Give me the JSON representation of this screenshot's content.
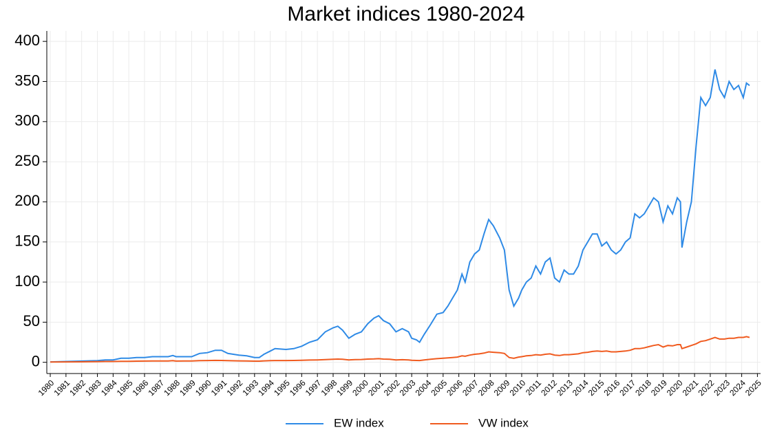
{
  "chart_data": {
    "type": "line",
    "title": "Market indices 1980-2024",
    "x": [
      1980,
      1981,
      1982,
      1983,
      1983.5,
      1984,
      1984.5,
      1985,
      1985.5,
      1986,
      1986.5,
      1987,
      1987.5,
      1987.8,
      1988,
      1988.5,
      1989,
      1989.5,
      1990,
      1990.5,
      1990.9,
      1991.3,
      1992,
      1992.5,
      1993,
      1993.3,
      1993.6,
      1994,
      1994.3,
      1995,
      1995.5,
      1996,
      1996.5,
      1997,
      1997.5,
      1998,
      1998.3,
      1998.6,
      1999,
      1999.4,
      1999.8,
      2000.2,
      2000.6,
      2000.9,
      2001.2,
      2001.6,
      2002,
      2002.4,
      2002.8,
      2003,
      2003.3,
      2003.5,
      2003.8,
      2004.2,
      2004.6,
      2005,
      2005.3,
      2005.6,
      2005.9,
      2006.2,
      2006.4,
      2006.7,
      2007,
      2007.3,
      2007.6,
      2007.9,
      2008.2,
      2008.6,
      2008.9,
      2009.2,
      2009.5,
      2009.8,
      2010,
      2010.3,
      2010.6,
      2010.9,
      2011.2,
      2011.5,
      2011.8,
      2012.1,
      2012.4,
      2012.7,
      2013,
      2013.3,
      2013.6,
      2013.9,
      2014.2,
      2014.5,
      2014.8,
      2015.1,
      2015.4,
      2015.7,
      2016,
      2016.3,
      2016.6,
      2016.9,
      2017.2,
      2017.5,
      2017.8,
      2018.1,
      2018.4,
      2018.7,
      2019,
      2019.3,
      2019.6,
      2019.9,
      2020.1,
      2020.2,
      2020.5,
      2020.8,
      2021.1,
      2021.4,
      2021.7,
      2022,
      2022.3,
      2022.6,
      2022.9,
      2023.2,
      2023.5,
      2023.8,
      2024.1,
      2024.3,
      2024.5
    ],
    "series": [
      {
        "name": "EW index",
        "color": "#2e8ae6",
        "values": [
          0.5,
          1,
          1.5,
          2,
          3,
          3,
          5,
          5,
          6,
          6,
          7,
          7,
          7,
          8.5,
          7,
          7,
          7,
          11,
          12,
          15,
          15,
          11,
          9,
          8,
          6,
          6,
          10,
          14,
          17,
          16,
          17,
          20,
          25,
          28,
          38,
          43,
          45,
          40,
          30,
          35,
          38,
          48,
          55,
          58,
          52,
          48,
          38,
          42,
          38,
          30,
          28,
          25,
          35,
          47,
          60,
          62,
          70,
          80,
          90,
          110,
          100,
          125,
          135,
          140,
          160,
          178,
          170,
          155,
          140,
          90,
          70,
          80,
          90,
          100,
          105,
          120,
          110,
          125,
          130,
          105,
          100,
          115,
          110,
          110,
          120,
          140,
          150,
          160,
          160,
          145,
          150,
          140,
          135,
          140,
          150,
          155,
          185,
          180,
          185,
          195,
          205,
          200,
          175,
          195,
          185,
          205,
          200,
          143,
          175,
          200,
          270,
          330,
          320,
          330,
          365,
          340,
          330,
          350,
          340,
          345,
          330,
          348,
          345
        ]
      },
      {
        "name": "VW index",
        "color": "#f05a1e",
        "values": [
          0.3,
          0.5,
          0.6,
          0.8,
          1,
          1,
          1.2,
          1.3,
          1.4,
          1.5,
          1.6,
          1.6,
          1.7,
          2,
          1.5,
          1.6,
          1.7,
          2,
          2.2,
          2.4,
          2.3,
          2,
          1.8,
          1.6,
          1.4,
          1.4,
          1.8,
          2,
          2.2,
          2.2,
          2.3,
          2.5,
          2.8,
          3,
          3.3,
          3.8,
          4,
          3.8,
          3,
          3.3,
          3.5,
          4,
          4.2,
          4.5,
          4,
          3.8,
          3,
          3.2,
          3,
          2.5,
          2.3,
          2.2,
          3,
          3.8,
          4.5,
          5,
          5.5,
          6,
          6.5,
          8,
          7.5,
          9,
          10,
          10.5,
          11.5,
          13,
          12.5,
          12,
          11,
          6,
          5,
          6.5,
          7,
          8,
          8.5,
          9.5,
          9,
          10,
          10.5,
          9,
          8.5,
          9.5,
          9.5,
          10,
          10.5,
          12,
          12.5,
          13.5,
          14,
          13.5,
          14,
          13,
          13,
          13.5,
          14,
          15,
          17,
          17,
          18,
          19.5,
          21,
          22,
          19,
          21,
          20.5,
          22,
          22,
          17,
          19,
          21,
          23,
          26,
          27,
          29,
          31,
          29,
          29,
          30,
          30,
          31,
          31,
          32,
          31
        ]
      }
    ],
    "xlim": [
      1979.78,
      2025.2
    ],
    "xticks": [
      1980,
      1981,
      1982,
      1983,
      1984,
      1985,
      1986,
      1987,
      1988,
      1989,
      1990,
      1991,
      1992,
      1993,
      1994,
      1995,
      1996,
      1997,
      1998,
      1999,
      2000,
      2001,
      2002,
      2003,
      2004,
      2005,
      2006,
      2007,
      2008,
      2009,
      2010,
      2011,
      2012,
      2013,
      2014,
      2015,
      2016,
      2017,
      2018,
      2019,
      2020,
      2021,
      2022,
      2023,
      2024,
      2025
    ],
    "ylim": [
      -14,
      413
    ],
    "yticks": [
      0,
      50,
      100,
      150,
      200,
      250,
      300,
      350,
      400
    ],
    "grid": true
  }
}
